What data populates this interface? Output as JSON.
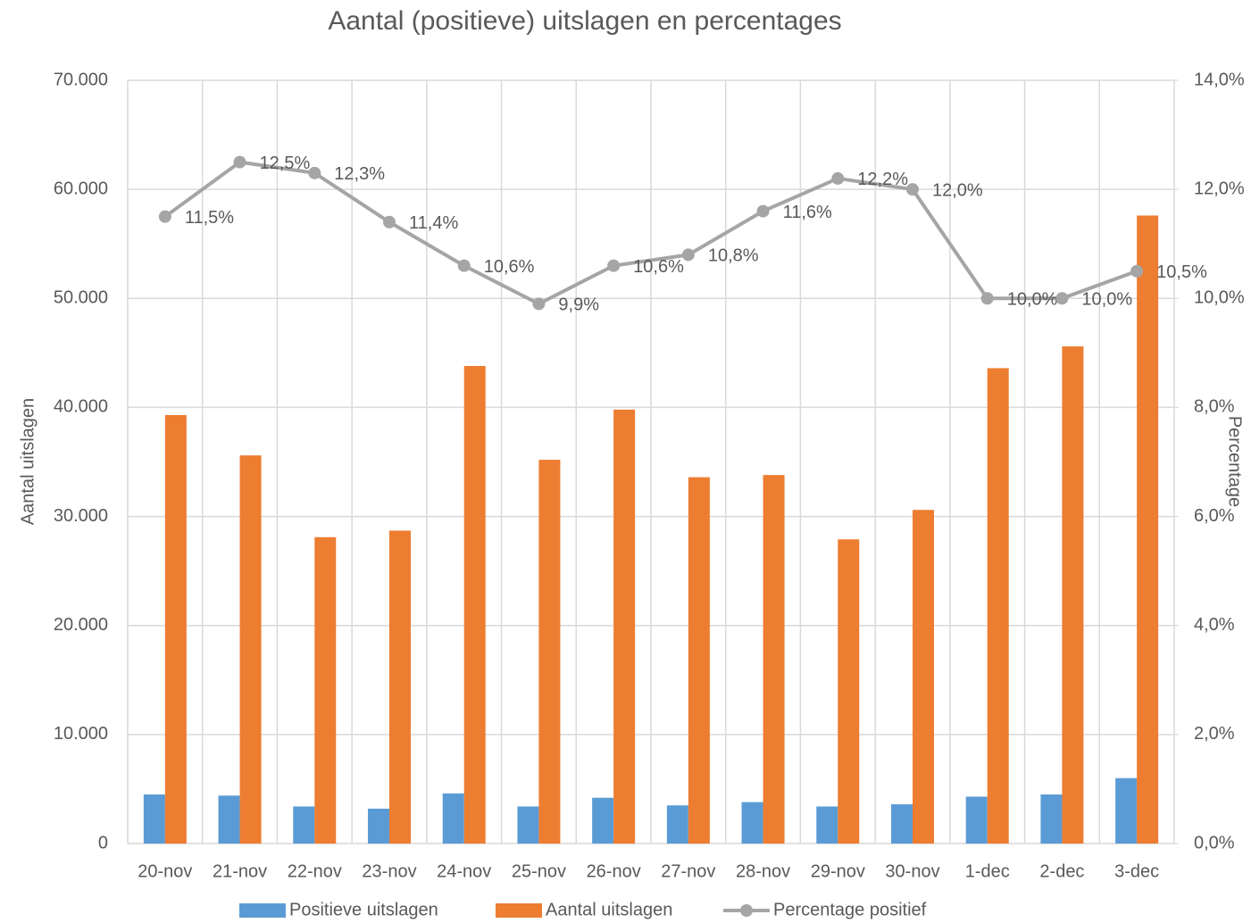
{
  "chart_data": {
    "type": "bar",
    "title": "Aantal (positieve) uitslagen en percentages",
    "y_label": "Aantal uitslagen",
    "y2_label": "Percentage",
    "categories": [
      "20-nov",
      "21-nov",
      "22-nov",
      "23-nov",
      "24-nov",
      "25-nov",
      "26-nov",
      "27-nov",
      "28-nov",
      "29-nov",
      "30-nov",
      "1-dec",
      "2-dec",
      "3-dec"
    ],
    "series": [
      {
        "name": "Positieve uitslagen",
        "type": "bar",
        "color": "#5b9bd5",
        "values": [
          4500,
          4400,
          3400,
          3200,
          4600,
          3400,
          4200,
          3500,
          3800,
          3400,
          3600,
          4300,
          4500,
          6000
        ]
      },
      {
        "name": "Aantal uitslagen",
        "type": "bar",
        "color": "#ed7d31",
        "values": [
          39300,
          35600,
          28100,
          28700,
          43800,
          35200,
          39800,
          33600,
          33800,
          27900,
          30600,
          43600,
          45600,
          57600
        ]
      },
      {
        "name": "Percentage positief",
        "type": "line",
        "axis": "y2",
        "color": "#a5a5a5",
        "values": [
          11.5,
          12.5,
          12.3,
          11.4,
          10.6,
          9.9,
          10.6,
          10.8,
          11.6,
          12.2,
          12.0,
          10.0,
          10.0,
          10.5
        ],
        "value_labels": [
          "11,5%",
          "12,5%",
          "12,3%",
          "11,4%",
          "10,6%",
          "9,9%",
          "10,6%",
          "10,8%",
          "11,6%",
          "12,2%",
          "12,0%",
          "10,0%",
          "10,0%",
          "10,5%"
        ]
      }
    ],
    "ylim": [
      0,
      70000
    ],
    "yticks": [
      0,
      {
        "value": 10000,
        "label": "10.000"
      },
      {
        "value": 20000,
        "label": "20.000"
      },
      {
        "value": 30000,
        "label": "30.000"
      },
      {
        "value": 40000,
        "label": "40.000"
      },
      {
        "value": 50000,
        "label": "50.000"
      },
      {
        "value": 60000,
        "label": "60.000"
      },
      {
        "value": 70000,
        "label": "70.000"
      }
    ],
    "y2lim": [
      0,
      14
    ],
    "y2ticks": [
      {
        "value": 0,
        "label": "0,0%"
      },
      {
        "value": 2,
        "label": "2,0%"
      },
      {
        "value": 4,
        "label": "4,0%"
      },
      {
        "value": 6,
        "label": "6,0%"
      },
      {
        "value": 8,
        "label": "8,0%"
      },
      {
        "value": 10,
        "label": "10,0%"
      },
      {
        "value": 12,
        "label": "12,0%"
      },
      {
        "value": 14,
        "label": "14,0%"
      }
    ],
    "grid": true,
    "legend": "bottom"
  }
}
